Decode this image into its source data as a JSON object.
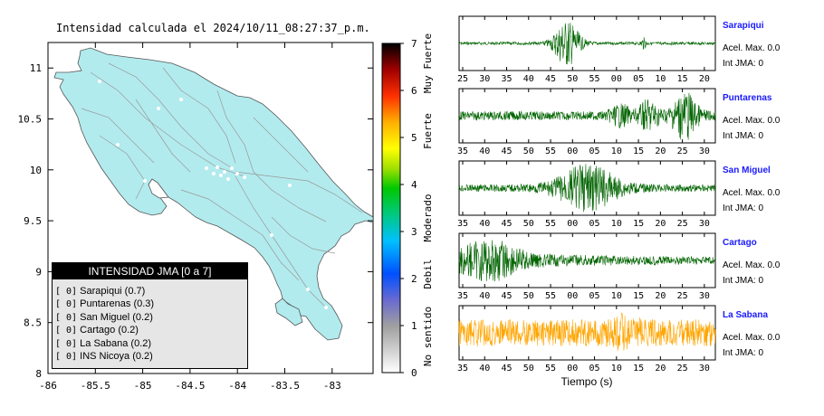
{
  "title": "Intensidad calculada el 2024/10/11_08:27:37_p.m.",
  "colorbar": {
    "ticks": [
      "0",
      "1",
      "2",
      "3",
      "4",
      "5",
      "6",
      "7"
    ],
    "category_labels": [
      "No sentido",
      "Debil",
      "Moderado",
      "Fuerte",
      "Muy Fuerte"
    ],
    "colors": [
      "#ffffff",
      "#a0a0a0",
      "#5b5bd6",
      "#0066ff",
      "#00b4ff",
      "#00c8a0",
      "#00c800",
      "#9be000",
      "#ffff00",
      "#ffc000",
      "#ff7800",
      "#ff2000",
      "#c00000",
      "#600000",
      "#000000"
    ]
  },
  "map": {
    "x_ticks": [
      "-86",
      "-85.5",
      "-85",
      "-84.5",
      "-84",
      "-83.5",
      "-83"
    ],
    "y_ticks": [
      "8",
      "8.5",
      "9",
      "9.5",
      "10",
      "10.5",
      "11"
    ],
    "land_color": "#b2ebee"
  },
  "legend": {
    "header": "INTENSIDAD JMA [0 a 7]",
    "items": [
      {
        "bracket": "[ 0]",
        "label": "Sarapiqui (0.7)"
      },
      {
        "bracket": "[ 0]",
        "label": "Puntarenas (0.3)"
      },
      {
        "bracket": "[ 0]",
        "label": "San Miguel (0.2)"
      },
      {
        "bracket": "[ 0]",
        "label": "Cartago (0.2)"
      },
      {
        "bracket": "[ 0]",
        "label": "La Sabana (0.2)"
      },
      {
        "bracket": "[ 0]",
        "label": "INS Nicoya (0.2)"
      }
    ]
  },
  "waveforms": {
    "xlabel": "Tiempo (s)",
    "stations": [
      {
        "name": "Sarapiqui",
        "acc": "Acel. Max. 0.0",
        "int": "Int JMA: 0",
        "color": "#006400",
        "ticks": [
          "25",
          "30",
          "35",
          "40",
          "45",
          "50",
          "55",
          "00",
          "05",
          "10",
          "15",
          "20"
        ]
      },
      {
        "name": "Puntarenas",
        "acc": "Acel. Max. 0.0",
        "int": "Int JMA: 0",
        "color": "#006400",
        "ticks": [
          "35",
          "40",
          "45",
          "50",
          "55",
          "00",
          "05",
          "10",
          "15",
          "20",
          "25",
          "30"
        ]
      },
      {
        "name": "San Miguel",
        "acc": "Acel. Max. 0.0",
        "int": "Int JMA: 0",
        "color": "#006400",
        "ticks": [
          "35",
          "40",
          "45",
          "50",
          "55",
          "00",
          "05",
          "10",
          "15",
          "20",
          "25",
          "30"
        ]
      },
      {
        "name": "Cartago",
        "acc": "Acel. Max. 0.0",
        "int": "Int JMA: 0",
        "color": "#006400",
        "ticks": [
          "35",
          "40",
          "45",
          "50",
          "55",
          "00",
          "05",
          "10",
          "15",
          "20",
          "25",
          "30"
        ]
      },
      {
        "name": "La Sabana",
        "acc": "Acel. Max. 0.0",
        "int": "Int JMA: 0",
        "color": "#ffa500",
        "ticks": [
          "35",
          "40",
          "45",
          "50",
          "55",
          "00",
          "05",
          "10",
          "15",
          "20",
          "25",
          "30"
        ]
      }
    ]
  },
  "chart_data": {
    "type": "line",
    "title": "Intensidad calculada el 2024/10/11_08:27:37_p.m.",
    "xlabel": "Tiempo (s)",
    "ylabel": "",
    "series": [
      {
        "name": "Sarapiqui",
        "peak_acceleration": 0.0,
        "jma_intensity": 0,
        "computed_intensity": 0.7
      },
      {
        "name": "Puntarenas",
        "peak_acceleration": 0.0,
        "jma_intensity": 0,
        "computed_intensity": 0.3
      },
      {
        "name": "San Miguel",
        "peak_acceleration": 0.0,
        "jma_intensity": 0,
        "computed_intensity": 0.2
      },
      {
        "name": "Cartago",
        "peak_acceleration": 0.0,
        "jma_intensity": 0,
        "computed_intensity": 0.2
      },
      {
        "name": "La Sabana",
        "peak_acceleration": 0.0,
        "jma_intensity": 0,
        "computed_intensity": 0.2
      },
      {
        "name": "INS Nicoya",
        "computed_intensity": 0.2
      }
    ],
    "map_xlim": [
      -86,
      -82.5
    ],
    "map_ylim": [
      8,
      11.4
    ],
    "intensity_scale": [
      0,
      7
    ]
  }
}
